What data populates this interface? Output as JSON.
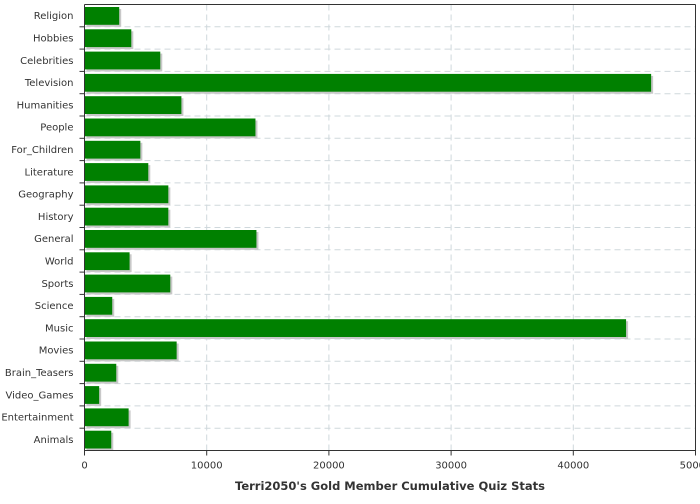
{
  "chart_data": {
    "type": "bar",
    "orientation": "horizontal",
    "title": "",
    "xlabel": "Terri2050's Gold Member Cumulative Quiz Stats",
    "ylabel": "",
    "xlim": [
      0,
      50000
    ],
    "xticks": [
      "0",
      "10000",
      "20000",
      "30000",
      "40000",
      "50000"
    ],
    "grid": true,
    "bar_color": "#008000",
    "categories": [
      "Religion",
      "Hobbies",
      "Celebrities",
      "Television",
      "Humanities",
      "People",
      "For_Children",
      "Literature",
      "Geography",
      "History",
      "General",
      "World",
      "Sports",
      "Science",
      "Music",
      "Movies",
      "Brain_Teasers",
      "Video_Games",
      "Entertainment",
      "Animals"
    ],
    "values": [
      2840,
      3830,
      6200,
      46370,
      7930,
      13990,
      4570,
      5220,
      6860,
      6860,
      14070,
      3690,
      7020,
      2270,
      44320,
      7540,
      2600,
      1200,
      3610,
      2190
    ]
  }
}
